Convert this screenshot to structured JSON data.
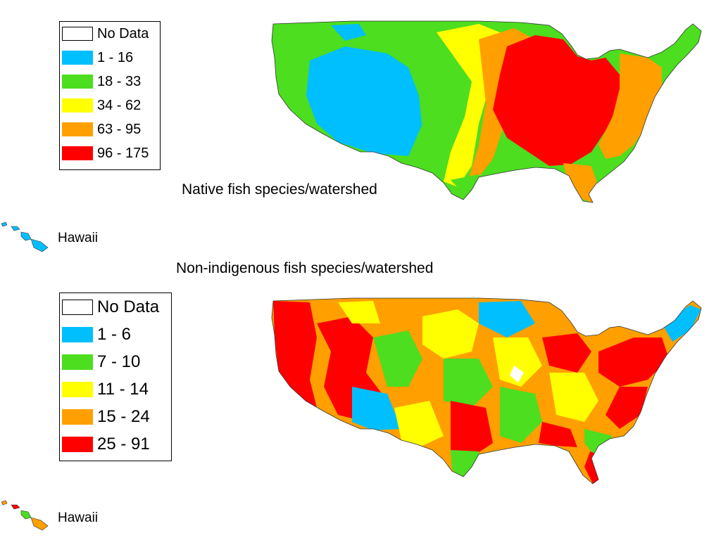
{
  "native": {
    "caption": "Native fish species/watershed",
    "hawaii_label": "Hawaii",
    "legend": [
      {
        "label": "No Data",
        "color": "#ffffff"
      },
      {
        "label": "1 - 16",
        "color": "#00bfff"
      },
      {
        "label": "18 - 33",
        "color": "#4cde1f"
      },
      {
        "label": "34 - 62",
        "color": "#ffff00"
      },
      {
        "label": "63 - 95",
        "color": "#ff9f00"
      },
      {
        "label": "96 - 175",
        "color": "#ff0000"
      }
    ]
  },
  "nonnative": {
    "caption": "Non-indigenous fish species/watershed",
    "hawaii_label": "Hawaii",
    "legend": [
      {
        "label": "No Data",
        "color": "#ffffff"
      },
      {
        "label": "1 - 6",
        "color": "#00bfff"
      },
      {
        "label": "7 - 10",
        "color": "#4cde1f"
      },
      {
        "label": "11 - 14",
        "color": "#ffff00"
      },
      {
        "label": "15 - 24",
        "color": "#ff9f00"
      },
      {
        "label": "25 - 91",
        "color": "#ff0000"
      }
    ]
  }
}
